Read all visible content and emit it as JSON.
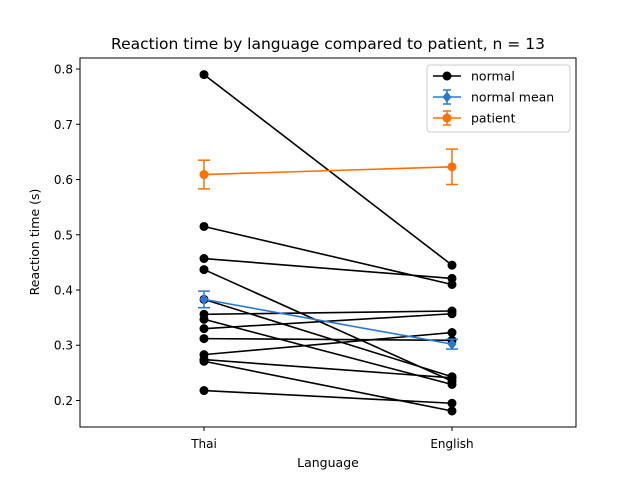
{
  "chart_data": {
    "type": "line",
    "title": "Reaction time by language compared to patient, n = 13",
    "xlabel": "Language",
    "ylabel": "Reaction time (s)",
    "categories": [
      "Thai",
      "English"
    ],
    "ylim": [
      0.152,
      0.82
    ],
    "yticks": [
      0.2,
      0.3,
      0.4,
      0.5,
      0.6,
      0.7,
      0.8
    ],
    "ytick_labels": [
      "0.2",
      "0.3",
      "0.4",
      "0.5",
      "0.6",
      "0.7",
      "0.8"
    ],
    "legend_position": "top-right",
    "legend": [
      {
        "label": "normal",
        "color": "#000000",
        "marker": "circle"
      },
      {
        "label": "normal mean",
        "color": "#2878d2",
        "marker": "diamond",
        "errorbar": true
      },
      {
        "label": "patient",
        "color": "#ff7005",
        "marker": "circle",
        "errorbar": true
      }
    ],
    "series": [
      {
        "group": "normal",
        "values": [
          0.79,
          0.445
        ]
      },
      {
        "group": "normal",
        "values": [
          0.515,
          0.41
        ]
      },
      {
        "group": "normal",
        "values": [
          0.457,
          0.421
        ]
      },
      {
        "group": "normal",
        "values": [
          0.437,
          0.235
        ]
      },
      {
        "group": "normal",
        "values": [
          0.383,
          0.243
        ]
      },
      {
        "group": "normal",
        "values": [
          0.356,
          0.362
        ]
      },
      {
        "group": "normal",
        "values": [
          0.347,
          0.229
        ]
      },
      {
        "group": "normal",
        "values": [
          0.33,
          0.357
        ]
      },
      {
        "group": "normal",
        "values": [
          0.312,
          0.309
        ]
      },
      {
        "group": "normal",
        "values": [
          0.283,
          0.323
        ]
      },
      {
        "group": "normal",
        "values": [
          0.274,
          0.241
        ]
      },
      {
        "group": "normal",
        "values": [
          0.271,
          0.181
        ]
      },
      {
        "group": "normal",
        "values": [
          0.218,
          0.195
        ]
      },
      {
        "group": "normal mean",
        "values": [
          0.383,
          0.302
        ],
        "errors": [
          0.015,
          0.009
        ]
      },
      {
        "group": "patient",
        "values": [
          0.609,
          0.623
        ],
        "errors": [
          0.026,
          0.032
        ]
      }
    ]
  }
}
